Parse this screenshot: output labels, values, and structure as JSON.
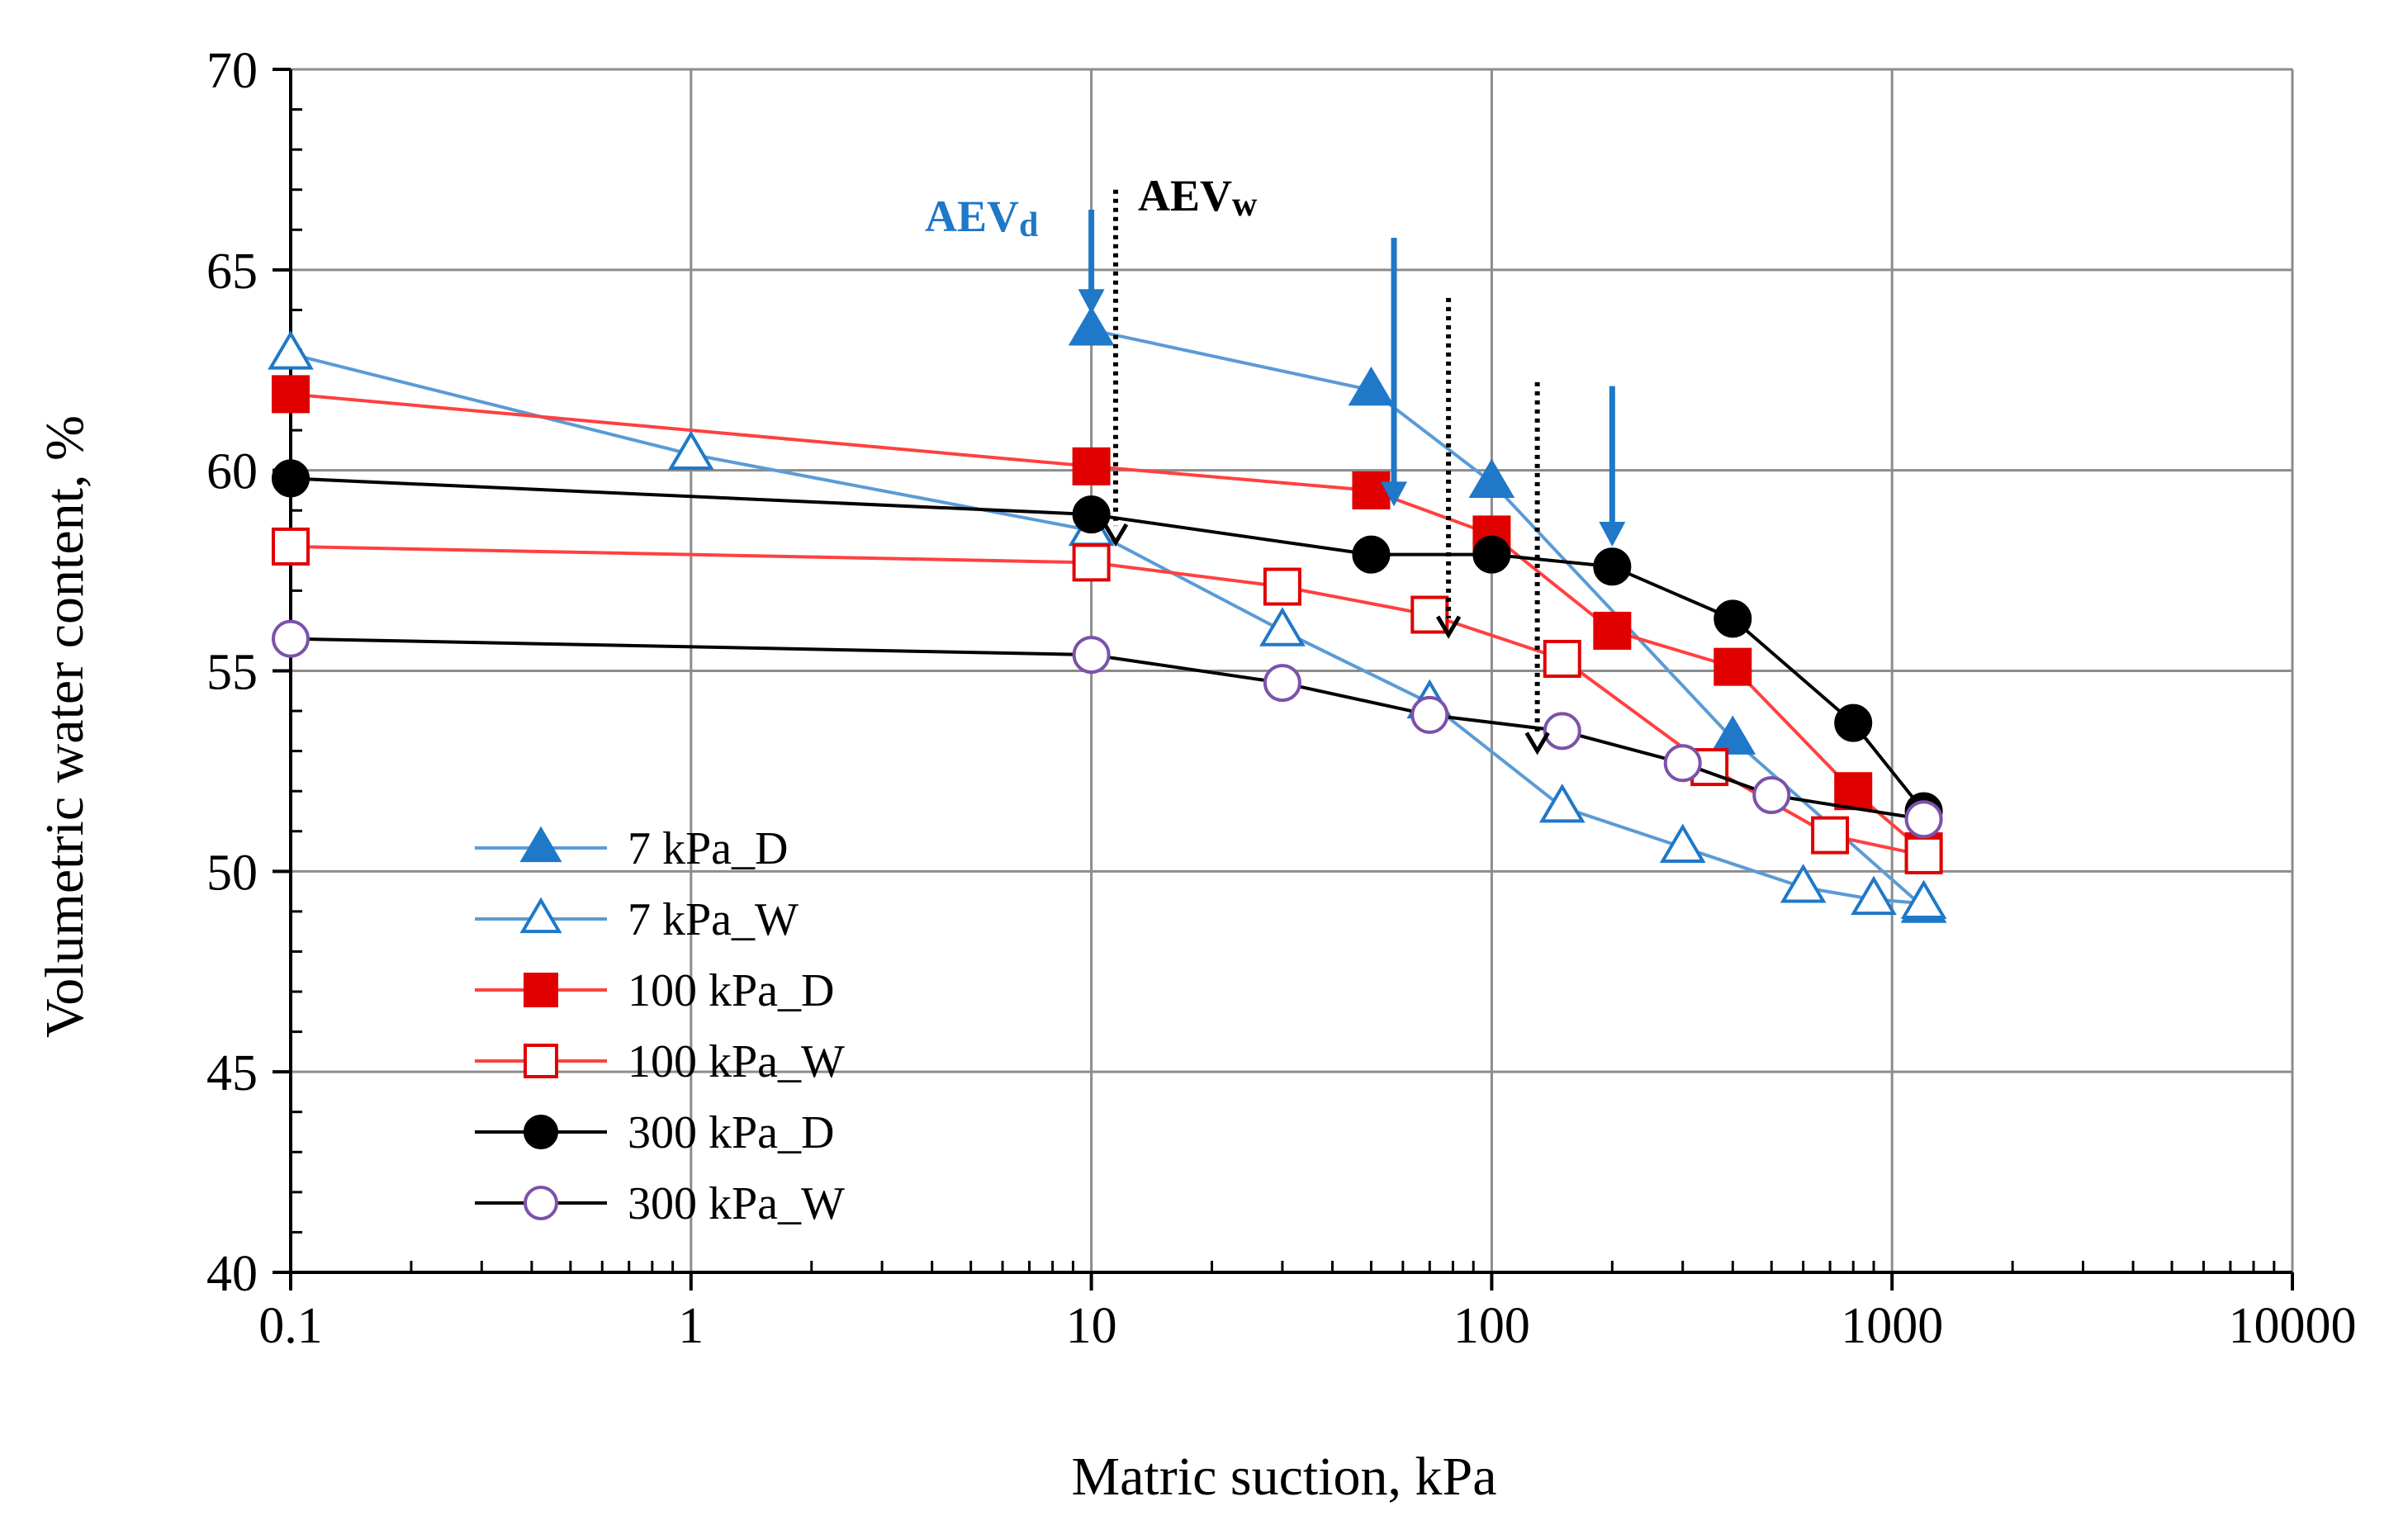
{
  "chart_data": {
    "type": "line",
    "x_scale": "log",
    "xlabel": "Matric suction, kPa",
    "ylabel": "Volumetric water content, %",
    "xlim": [
      0.1,
      10000
    ],
    "ylim": [
      40,
      70
    ],
    "x_ticks": [
      0.1,
      1,
      10,
      100,
      1000,
      10000
    ],
    "x_tick_labels": [
      "0.1",
      "1",
      "10",
      "100",
      "1000",
      "10000"
    ],
    "y_ticks": [
      40,
      45,
      50,
      55,
      60,
      65,
      70
    ],
    "y_tick_labels": [
      "40",
      "45",
      "50",
      "55",
      "60",
      "65",
      "70"
    ],
    "grid": true,
    "legend_position": "lower-left",
    "series": [
      {
        "name": "7 kPa_D",
        "color": "#5b9bd5",
        "marker_color": "#1f78c8",
        "marker": "triangle",
        "filled": true,
        "x": [
          10,
          50,
          100,
          400,
          1200
        ],
        "y": [
          63.5,
          62.0,
          59.7,
          53.3,
          49.1
        ]
      },
      {
        "name": "7 kPa_W",
        "color": "#5b9bd5",
        "marker_color": "#1f78c8",
        "marker": "triangle",
        "filled": false,
        "x": [
          0.1,
          1,
          10,
          30,
          70,
          150,
          300,
          600,
          900,
          1200
        ],
        "y": [
          62.9,
          60.4,
          58.5,
          56.0,
          54.2,
          51.6,
          50.6,
          49.6,
          49.3,
          49.2
        ]
      },
      {
        "name": "100 kPa_D",
        "color": "#ff4040",
        "marker_color": "#e00000",
        "marker": "square",
        "filled": true,
        "x": [
          0.1,
          10,
          50,
          100,
          200,
          400,
          800,
          1200
        ],
        "y": [
          61.9,
          60.1,
          59.5,
          58.4,
          56.0,
          55.1,
          52.0,
          50.5
        ]
      },
      {
        "name": "100 kPa_W",
        "color": "#ff4040",
        "marker_color": "#e00000",
        "marker": "square",
        "filled": false,
        "x": [
          0.1,
          10,
          30,
          70,
          150,
          350,
          700,
          1200
        ],
        "y": [
          58.1,
          57.7,
          57.1,
          56.4,
          55.3,
          52.6,
          50.9,
          50.4
        ]
      },
      {
        "name": "300 kPa_D",
        "color": "#000000",
        "marker_color": "#000000",
        "marker": "circle",
        "filled": true,
        "x": [
          0.1,
          10,
          50,
          100,
          200,
          400,
          800,
          1200
        ],
        "y": [
          59.8,
          58.9,
          57.9,
          57.9,
          57.6,
          56.3,
          53.7,
          51.5
        ]
      },
      {
        "name": "300 kPa_W",
        "color": "#000000",
        "marker_color": "#7b52ab",
        "marker": "circle",
        "filled": false,
        "x": [
          0.1,
          10,
          30,
          70,
          150,
          300,
          500,
          1200
        ],
        "y": [
          55.8,
          55.4,
          54.7,
          53.9,
          53.5,
          52.7,
          51.9,
          51.3
        ]
      }
    ],
    "annotations": [
      {
        "text": "AEVd",
        "color": "#1f78c8"
      },
      {
        "text": "AEVw",
        "color": "#000000"
      }
    ],
    "aev_d_arrows": [
      {
        "x": 10,
        "y_top": 66.5,
        "y_bottom": 63.9
      },
      {
        "x": 57,
        "y_top": 65.8,
        "y_bottom": 59.1
      },
      {
        "x": 200,
        "y_top": 62.1,
        "y_bottom": 58.1
      }
    ],
    "aev_w_arrows": [
      {
        "x": 11.5,
        "y_top": 67.0,
        "y_bottom": 58.2
      },
      {
        "x": 78,
        "y_top": 64.3,
        "y_bottom": 55.9
      },
      {
        "x": 130,
        "y_top": 62.2,
        "y_bottom": 53.0
      }
    ]
  }
}
